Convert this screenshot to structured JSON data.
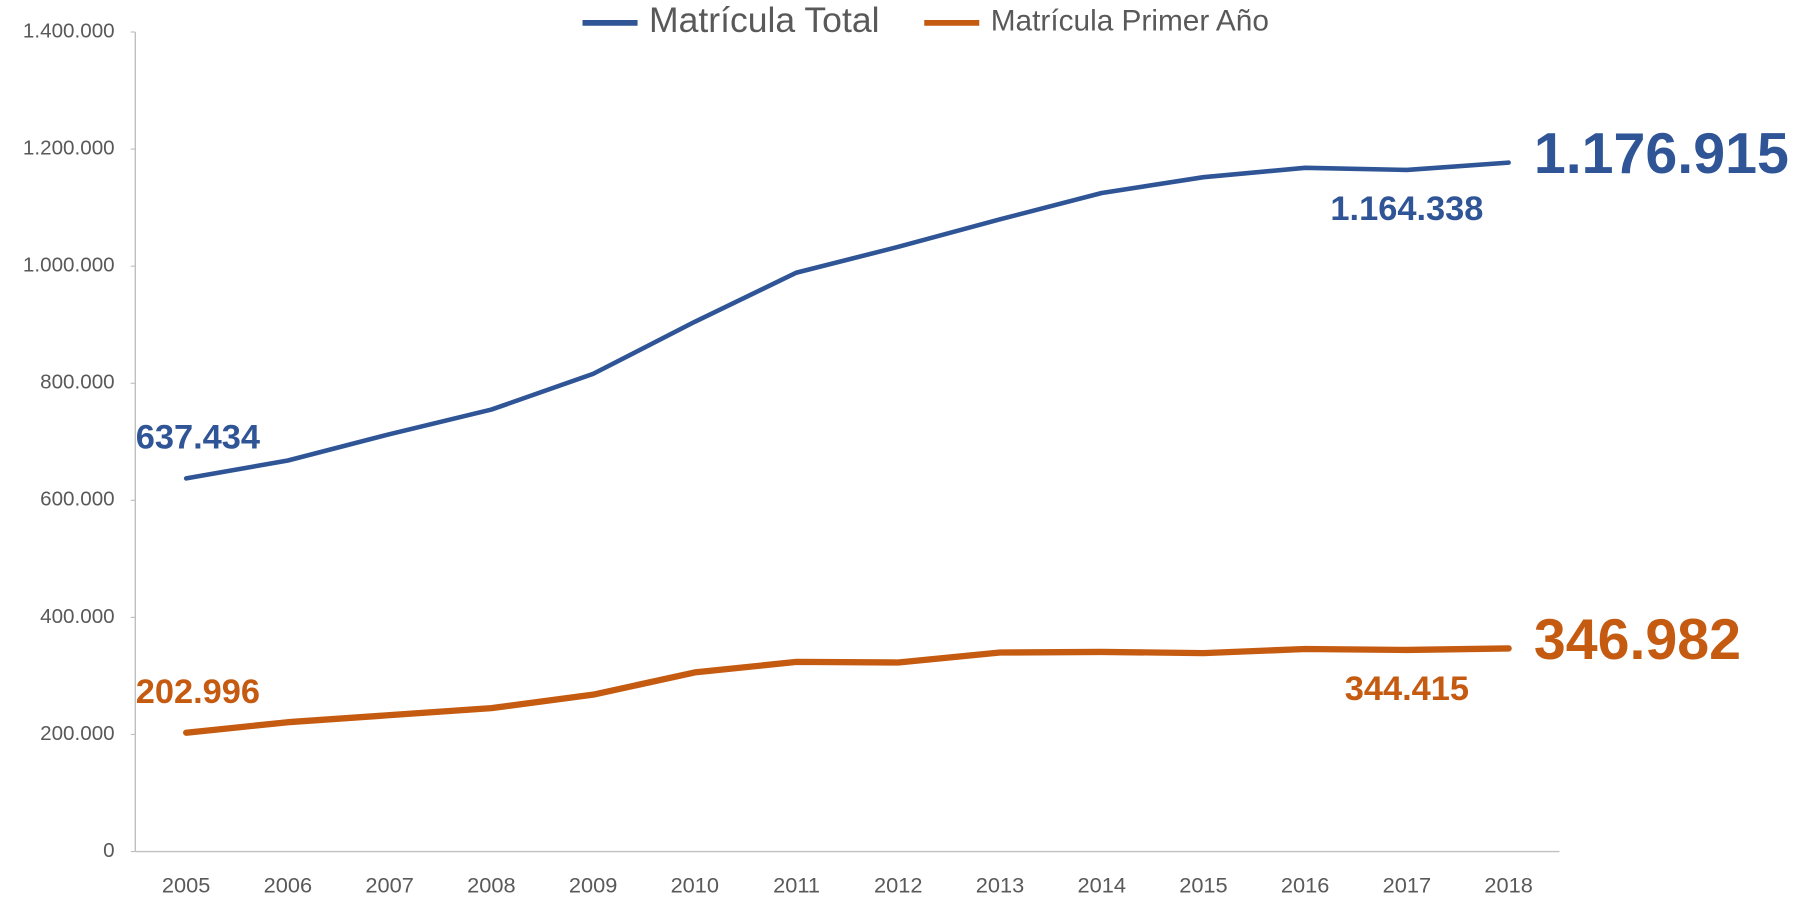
{
  "chart_data": {
    "type": "line",
    "categories": [
      "2005",
      "2006",
      "2007",
      "2008",
      "2009",
      "2010",
      "2011",
      "2012",
      "2013",
      "2014",
      "2015",
      "2016",
      "2017",
      "2018"
    ],
    "series": [
      {
        "name": "Matrícula Total",
        "color": "#2f5597",
        "values": [
          637434,
          668000,
          713000,
          755000,
          816000,
          905000,
          989000,
          1033000,
          1080000,
          1125000,
          1152000,
          1168000,
          1164338,
          1176915
        ],
        "value_labels": [
          "637.434",
          null,
          null,
          null,
          null,
          null,
          null,
          null,
          null,
          null,
          null,
          null,
          "1.164.338",
          "1.176.915"
        ]
      },
      {
        "name": "Matrícula Primer Año",
        "color": "#c55a11",
        "values": [
          202996,
          221000,
          233000,
          245000,
          268000,
          306000,
          324000,
          323000,
          340000,
          341000,
          339000,
          346000,
          344415,
          346982
        ],
        "value_labels": [
          "202.996",
          null,
          null,
          null,
          null,
          null,
          null,
          null,
          null,
          null,
          null,
          null,
          "344.415",
          "346.982"
        ]
      }
    ],
    "ylim": [
      0,
      1400000
    ],
    "yticks": [
      0,
      {
        "value": 200000,
        "label": "200.000"
      },
      {
        "value": 400000,
        "label": "400.000"
      },
      {
        "value": 600000,
        "label": "600.000"
      },
      {
        "value": 800000,
        "label": "800.000"
      },
      {
        "value": 1000000,
        "label": "1.000.000"
      },
      {
        "value": 1200000,
        "label": "1.200.000"
      },
      {
        "value": 1400000,
        "label": "1.400.000"
      }
    ],
    "legend": "top"
  }
}
